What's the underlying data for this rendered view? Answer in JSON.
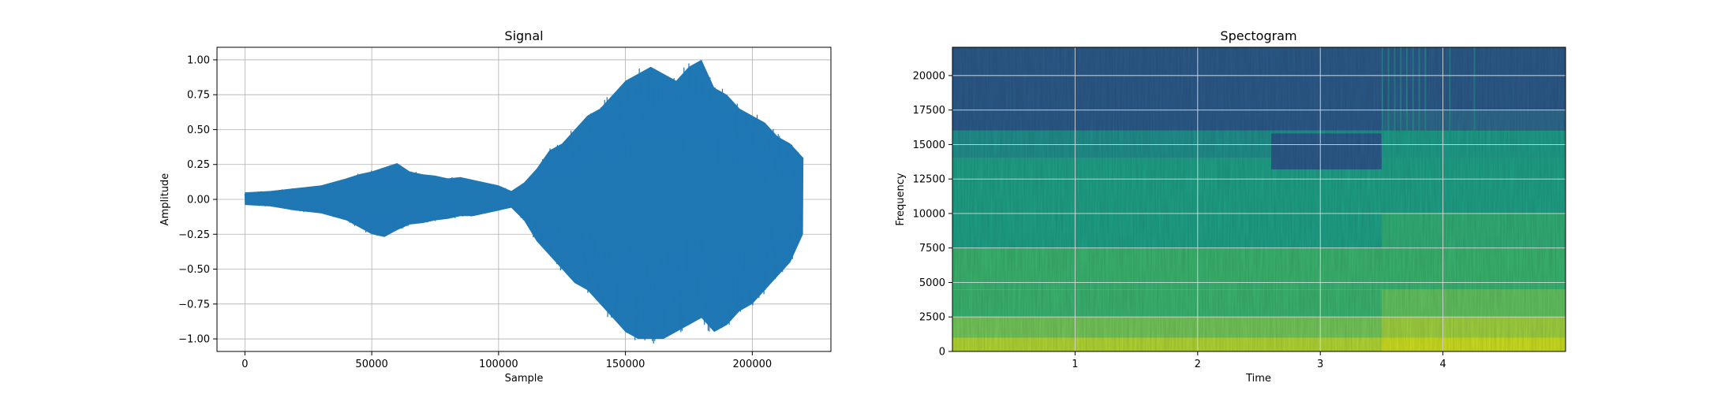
{
  "chart_data": [
    {
      "type": "line",
      "title": "Signal",
      "xlabel": "Sample",
      "ylabel": "Amplitude",
      "xlim": [
        -11000,
        231000
      ],
      "ylim": [
        -1.09,
        1.09
      ],
      "grid": true,
      "color": "#1f77b4",
      "xticks": [
        0,
        50000,
        100000,
        150000,
        200000
      ],
      "xtick_labels": [
        "0",
        "50000",
        "100000",
        "150000",
        "200000"
      ],
      "yticks": [
        1.0,
        0.75,
        0.5,
        0.25,
        0.0,
        -0.25,
        -0.5,
        -0.75,
        -1.0
      ],
      "ytick_labels": [
        "1.00",
        "0.75",
        "0.50",
        "0.25",
        "0.00",
        "−0.25",
        "−0.50",
        "−0.75",
        "−1.00"
      ],
      "envelope": {
        "x": [
          0,
          10000,
          20000,
          30000,
          40000,
          45000,
          50000,
          55000,
          60000,
          65000,
          70000,
          75000,
          80000,
          85000,
          90000,
          95000,
          100000,
          105000,
          110000,
          115000,
          120000,
          125000,
          130000,
          135000,
          140000,
          145000,
          150000,
          155000,
          160000,
          165000,
          170000,
          175000,
          180000,
          185000,
          190000,
          195000,
          200000,
          205000,
          210000,
          215000,
          220000
        ],
        "upper": [
          0.05,
          0.06,
          0.08,
          0.1,
          0.15,
          0.18,
          0.2,
          0.23,
          0.26,
          0.2,
          0.18,
          0.17,
          0.15,
          0.16,
          0.14,
          0.12,
          0.1,
          0.06,
          0.12,
          0.22,
          0.35,
          0.4,
          0.5,
          0.6,
          0.65,
          0.75,
          0.85,
          0.9,
          0.95,
          0.9,
          0.85,
          0.95,
          1.0,
          0.8,
          0.75,
          0.65,
          0.6,
          0.55,
          0.45,
          0.4,
          0.3
        ],
        "lower": [
          -0.04,
          -0.05,
          -0.08,
          -0.1,
          -0.15,
          -0.2,
          -0.25,
          -0.27,
          -0.22,
          -0.18,
          -0.17,
          -0.15,
          -0.14,
          -0.12,
          -0.12,
          -0.1,
          -0.08,
          -0.06,
          -0.15,
          -0.3,
          -0.4,
          -0.5,
          -0.6,
          -0.65,
          -0.75,
          -0.85,
          -0.95,
          -1.0,
          -1.0,
          -1.0,
          -0.95,
          -0.9,
          -0.85,
          -0.95,
          -0.9,
          -0.8,
          -0.75,
          -0.65,
          -0.55,
          -0.45,
          -0.25
        ]
      }
    },
    {
      "type": "heatmap",
      "title": "Spectogram",
      "xlabel": "Time",
      "ylabel": "Frequency",
      "xlim": [
        0,
        5.0
      ],
      "ylim": [
        0,
        22050
      ],
      "grid": true,
      "xticks": [
        1,
        2,
        3,
        4
      ],
      "xtick_labels": [
        "1",
        "2",
        "3",
        "4"
      ],
      "yticks": [
        0,
        2500,
        5000,
        7500,
        10000,
        12500,
        15000,
        17500,
        20000
      ],
      "ytick_labels": [
        "0",
        "2500",
        "5000",
        "7500",
        "10000",
        "12500",
        "15000",
        "17500",
        "20000"
      ],
      "colormap": "viridis",
      "colormap_stops": [
        "#2c5a8a",
        "#2f6f8d",
        "#218f8c",
        "#1fa187",
        "#3bb46f",
        "#73c65a",
        "#b2d534",
        "#d9e11a"
      ],
      "bands": [
        {
          "f_from": 17500,
          "f_to": 22050,
          "level": 0.0
        },
        {
          "f_from": 16000,
          "f_to": 17500,
          "level": 0.05
        },
        {
          "f_from": 14000,
          "f_to": 16000,
          "level": 0.32
        },
        {
          "f_from": 10000,
          "f_to": 14000,
          "level": 0.38
        },
        {
          "f_from": 7500,
          "f_to": 10000,
          "level": 0.43
        },
        {
          "f_from": 4500,
          "f_to": 7500,
          "level": 0.5
        },
        {
          "f_from": 2500,
          "f_to": 4500,
          "level": 0.6
        },
        {
          "f_from": 1000,
          "f_to": 2500,
          "level": 0.72
        },
        {
          "f_from": 0,
          "f_to": 1000,
          "level": 0.85
        }
      ],
      "dark_region": {
        "t_from": 2.6,
        "t_to": 3.5,
        "f_from": 13200,
        "f_to": 15800,
        "level": 0.06
      },
      "bright_time_range": {
        "t_from": 3.5,
        "t_to": 5.0,
        "boost": 0.08
      },
      "vertical_streaks_t": [
        3.5,
        3.55,
        3.6,
        3.65,
        3.7,
        3.75,
        3.8,
        3.85,
        4.05,
        4.25
      ]
    }
  ]
}
